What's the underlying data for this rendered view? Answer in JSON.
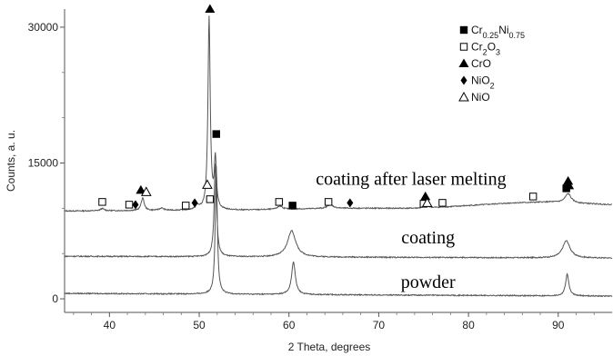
{
  "chart_data": {
    "type": "line",
    "title": "",
    "xlabel": "2 Theta, degrees",
    "ylabel": "Counts, a. u.",
    "xlim": [
      35,
      96
    ],
    "ylim": [
      -1500,
      32000
    ],
    "x_ticks": [
      "40",
      "50",
      "60",
      "70",
      "80",
      "90"
    ],
    "y_ticks": [
      "0",
      "15000",
      "30000"
    ],
    "grid": false,
    "legend_position": "top-right",
    "legend": [
      {
        "name": "Cr0.25Ni0.75",
        "base": "Cr",
        "sub1": "0.25",
        "mid": "Ni",
        "sub2": "0.75",
        "marker": "filled-square"
      },
      {
        "name": "Cr2O3",
        "base": "Cr",
        "sub1": "2",
        "mid": "O",
        "sub2": "3",
        "marker": "open-square"
      },
      {
        "name": "CrO",
        "base": "CrO",
        "sub1": "",
        "mid": "",
        "sub2": "",
        "marker": "filled-triangle"
      },
      {
        "name": "NiO2",
        "base": "NiO",
        "sub1": "2",
        "mid": "",
        "sub2": "",
        "marker": "filled-diamond"
      },
      {
        "name": "NiO",
        "base": "NiO",
        "sub1": "",
        "mid": "",
        "sub2": "",
        "marker": "open-triangle"
      }
    ],
    "series": [
      {
        "name": "coating after laser melting",
        "label_x": 73.6,
        "label_y": 12600,
        "baseline": [
          [
            35,
            9700
          ],
          [
            55,
            9800
          ],
          [
            65,
            10000
          ],
          [
            75,
            10000
          ],
          [
            85,
            10600
          ],
          [
            89,
            10700
          ],
          [
            96,
            10400
          ]
        ],
        "peaks": [
          {
            "x": 39.2,
            "h": 250,
            "w": 0.25
          },
          {
            "x": 43.7,
            "h": 1400,
            "w": 0.2
          },
          {
            "x": 45.8,
            "h": 250,
            "w": 0.3
          },
          {
            "x": 49.8,
            "h": 400,
            "w": 0.25
          },
          {
            "x": 51.1,
            "h": 21300,
            "w": 0.15
          },
          {
            "x": 51.8,
            "h": 5500,
            "w": 0.14
          },
          {
            "x": 59.0,
            "h": 350,
            "w": 0.35
          },
          {
            "x": 64.6,
            "h": 450,
            "w": 0.35
          },
          {
            "x": 75.3,
            "h": 300,
            "w": 0.35
          },
          {
            "x": 91.1,
            "h": 1000,
            "w": 0.4
          }
        ]
      },
      {
        "name": "coating",
        "label_x": 75.5,
        "label_y": 6100,
        "baseline": [
          [
            35,
            4700
          ],
          [
            96,
            4500
          ]
        ],
        "peaks": [
          {
            "x": 51.8,
            "h": 10300,
            "w": 0.16
          },
          {
            "x": 60.3,
            "h": 2900,
            "w": 0.55
          },
          {
            "x": 90.9,
            "h": 1900,
            "w": 0.5
          }
        ]
      },
      {
        "name": "powder",
        "label_x": 75.5,
        "label_y": 1200,
        "baseline": [
          [
            35,
            600
          ],
          [
            96,
            300
          ]
        ],
        "peaks": [
          {
            "x": 51.9,
            "h": 14200,
            "w": 0.14
          },
          {
            "x": 60.5,
            "h": 3600,
            "w": 0.25
          },
          {
            "x": 91.0,
            "h": 2400,
            "w": 0.22
          }
        ]
      }
    ],
    "phase_markers": [
      {
        "phase": "Cr2O3",
        "marker": "open-square",
        "x": 39.2,
        "y": 10700
      },
      {
        "phase": "Cr2O3",
        "marker": "open-square",
        "x": 42.2,
        "y": 10400
      },
      {
        "phase": "NiO2",
        "marker": "filled-diamond",
        "x": 42.9,
        "y": 10400
      },
      {
        "phase": "CrO",
        "marker": "filled-triangle",
        "x": 43.5,
        "y": 12000
      },
      {
        "phase": "NiO",
        "marker": "open-triangle",
        "x": 44.1,
        "y": 11800
      },
      {
        "phase": "Cr2O3",
        "marker": "open-square",
        "x": 48.5,
        "y": 10300
      },
      {
        "phase": "NiO2",
        "marker": "filled-diamond",
        "x": 49.5,
        "y": 10600
      },
      {
        "phase": "NiO",
        "marker": "open-triangle",
        "x": 50.9,
        "y": 12600
      },
      {
        "phase": "Cr2O3",
        "marker": "open-square",
        "x": 51.2,
        "y": 11000
      },
      {
        "phase": "CrO",
        "marker": "filled-triangle",
        "x": 51.2,
        "y": 32000
      },
      {
        "phase": "Cr0.25Ni0.75",
        "marker": "filled-square",
        "x": 51.9,
        "y": 18200
      },
      {
        "phase": "Cr2O3",
        "marker": "open-square",
        "x": 58.9,
        "y": 10700
      },
      {
        "phase": "Cr0.25Ni0.75",
        "marker": "filled-square",
        "x": 60.4,
        "y": 10300
      },
      {
        "phase": "Cr2O3",
        "marker": "open-square",
        "x": 64.4,
        "y": 10700
      },
      {
        "phase": "NiO2",
        "marker": "filled-diamond",
        "x": 66.8,
        "y": 10600
      },
      {
        "phase": "CrO",
        "marker": "filled-triangle",
        "x": 75.2,
        "y": 11300
      },
      {
        "phase": "Cr2O3",
        "marker": "open-square",
        "x": 75.0,
        "y": 10500
      },
      {
        "phase": "NiO",
        "marker": "open-triangle",
        "x": 75.4,
        "y": 10600
      },
      {
        "phase": "Cr2O3",
        "marker": "open-square",
        "x": 77.1,
        "y": 10600
      },
      {
        "phase": "Cr2O3",
        "marker": "open-square",
        "x": 87.2,
        "y": 11300
      },
      {
        "phase": "CrO",
        "marker": "filled-triangle",
        "x": 91.1,
        "y": 13000
      },
      {
        "phase": "CrO",
        "marker": "filled-triangle",
        "x": 91.2,
        "y": 12500
      },
      {
        "phase": "Cr0.25Ni0.75",
        "marker": "filled-square",
        "x": 90.9,
        "y": 12200
      }
    ]
  }
}
